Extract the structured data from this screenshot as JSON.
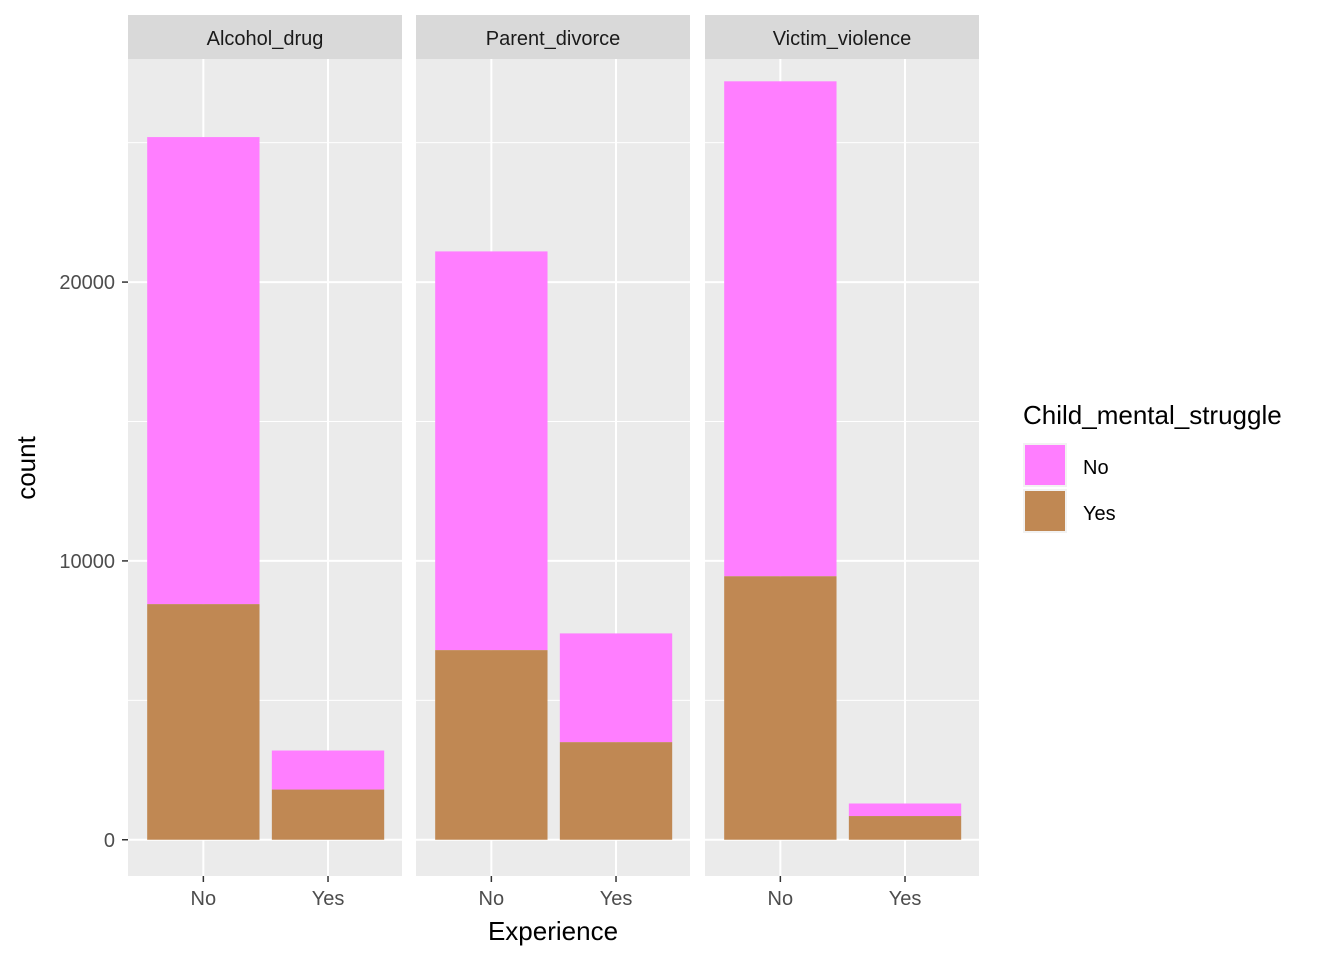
{
  "chart_data": {
    "type": "bar",
    "stacked": true,
    "facet_variable": "facets",
    "facets": [
      "Alcohol_drug",
      "Parent_divorce",
      "Victim_violence"
    ],
    "categories": [
      "No",
      "Yes"
    ],
    "xlabel": "Experience",
    "ylabel": "count",
    "ylim": [
      -1300,
      28000
    ],
    "yticks": [
      0,
      10000,
      20000
    ],
    "ytick_labels": [
      "0",
      "10000",
      "20000"
    ],
    "grid": true,
    "legend": {
      "title": "Child_mental_struggle",
      "position": "right",
      "entries": [
        "No",
        "Yes"
      ]
    },
    "colors": {
      "No": "#FF7EFF",
      "Yes": "#C08853"
    },
    "series": [
      {
        "name": "Yes",
        "facet_values": {
          "Alcohol_drug": [
            8450,
            1800
          ],
          "Parent_divorce": [
            6800,
            3500
          ],
          "Victim_violence": [
            9450,
            850
          ]
        }
      },
      {
        "name": "No",
        "facet_values": {
          "Alcohol_drug": [
            16750,
            1400
          ],
          "Parent_divorce": [
            14300,
            3900
          ],
          "Victim_violence": [
            17750,
            450
          ]
        }
      }
    ]
  }
}
